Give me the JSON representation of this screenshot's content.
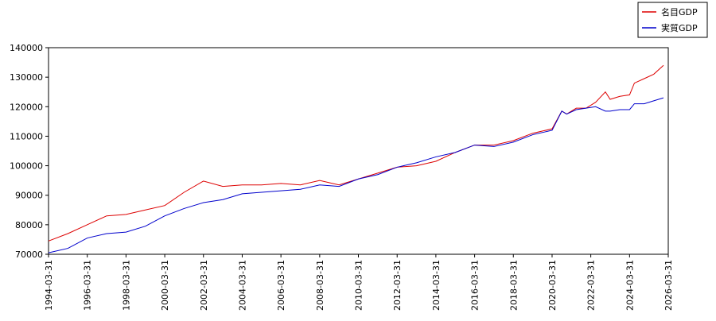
{
  "chart_data": {
    "type": "line",
    "x": [
      "1994-03-31",
      "1995-03-31",
      "1996-03-31",
      "1997-03-31",
      "1998-03-31",
      "1999-03-31",
      "2000-03-31",
      "2001-03-31",
      "2002-03-31",
      "2003-03-31",
      "2004-03-31",
      "2005-03-31",
      "2006-03-31",
      "2007-03-31",
      "2008-03-31",
      "2009-03-31",
      "2010-03-31",
      "2011-03-31",
      "2012-03-31",
      "2013-03-31",
      "2014-03-31",
      "2015-03-31",
      "2016-03-31",
      "2017-03-31",
      "2018-03-31",
      "2019-03-31",
      "2020-03-31",
      "2020-09-30",
      "2020-12-31",
      "2021-06-30",
      "2021-12-31",
      "2022-06-30",
      "2022-12-31",
      "2023-03-31",
      "2023-09-30",
      "2024-03-31",
      "2024-06-30",
      "2024-12-31",
      "2025-06-30",
      "2025-12-31"
    ],
    "series": [
      {
        "name": "名目GDP",
        "color": "#dd0000",
        "values": [
          74500,
          77000,
          80000,
          83000,
          83500,
          85000,
          86500,
          91000,
          94800,
          93000,
          93500,
          93500,
          94000,
          93500,
          95000,
          93500,
          95500,
          97500,
          99500,
          100000,
          101500,
          104500,
          107000,
          107000,
          108500,
          111000,
          112500,
          118500,
          117500,
          119500,
          119500,
          121500,
          125000,
          122500,
          123500,
          124000,
          128000,
          129500,
          131000,
          134000
        ]
      },
      {
        "name": "実質GDP",
        "color": "#0000cc",
        "values": [
          70500,
          72000,
          75500,
          77000,
          77500,
          79500,
          83000,
          85500,
          87500,
          88500,
          90500,
          91000,
          91500,
          92000,
          93500,
          93000,
          95500,
          97000,
          99500,
          101000,
          103000,
          104500,
          107000,
          106500,
          108000,
          110500,
          112000,
          118500,
          117500,
          119000,
          119500,
          120000,
          118500,
          118500,
          119000,
          119000,
          121000,
          121000,
          122000,
          123000
        ]
      }
    ],
    "xlim": [
      "1994-03-31",
      "2026-03-31"
    ],
    "xticks": [
      "1994-03-31",
      "1996-03-31",
      "1998-03-31",
      "2000-03-31",
      "2002-03-31",
      "2004-03-31",
      "2006-03-31",
      "2008-03-31",
      "2010-03-31",
      "2012-03-31",
      "2014-03-31",
      "2016-03-31",
      "2018-03-31",
      "2020-03-31",
      "2022-03-31",
      "2024-03-31",
      "2026-03-31"
    ],
    "ylim": [
      70000,
      140000
    ],
    "yticks": [
      70000,
      80000,
      90000,
      100000,
      110000,
      120000,
      130000,
      140000
    ],
    "legend": "top-right"
  }
}
